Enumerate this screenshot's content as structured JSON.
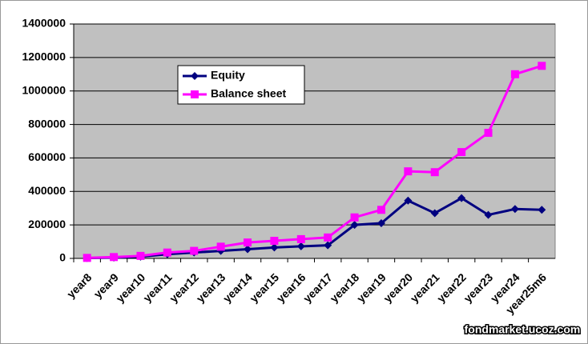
{
  "chart_data": {
    "type": "line",
    "categories": [
      "year8",
      "year9",
      "year10",
      "year11",
      "year12",
      "year13",
      "year14",
      "year15",
      "year16",
      "year17",
      "year18",
      "year19",
      "year20",
      "year21",
      "year22",
      "year23",
      "year24",
      "year25m6"
    ],
    "series": [
      {
        "name": "Equity",
        "color": "#000080",
        "marker": "diamond",
        "values": [
          2000,
          5000,
          10000,
          25000,
          35000,
          45000,
          55000,
          65000,
          72000,
          78000,
          200000,
          210000,
          345000,
          270000,
          360000,
          260000,
          295000,
          290000
        ]
      },
      {
        "name": "Balance sheet",
        "color": "#ff00ff",
        "marker": "square",
        "values": [
          3000,
          8000,
          15000,
          35000,
          45000,
          70000,
          95000,
          105000,
          115000,
          125000,
          245000,
          290000,
          520000,
          515000,
          635000,
          750000,
          1100000,
          1150000
        ]
      }
    ],
    "ylim": [
      0,
      1400000
    ],
    "yticks": [
      0,
      200000,
      400000,
      600000,
      800000,
      1000000,
      1200000,
      1400000
    ],
    "grid": true,
    "legend": "top-left",
    "plot_background": "#c0c0c0",
    "watermark": "fondmarket.ucoz.com"
  }
}
